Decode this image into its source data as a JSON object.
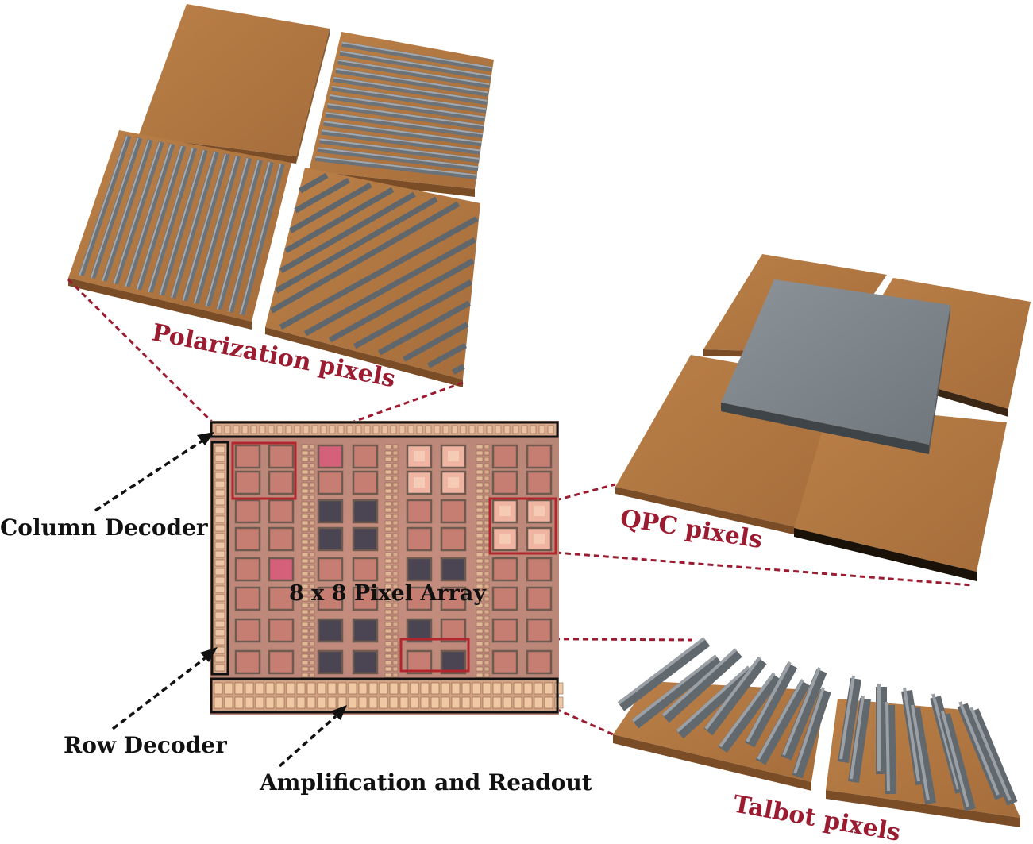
{
  "labels": {
    "polarization": "Polarization pixels",
    "qpc": "QPC pixels",
    "talbot": "Talbot pixels",
    "array": "8 x  8 Pixel Array",
    "column_decoder": "Column Decoder",
    "row_decoder": "Row Decoder",
    "amplification": "Amplification and Readout"
  },
  "colors": {
    "copper_top": "#b77c46",
    "copper_side": "#8b5a2e",
    "metal": "#7f868c",
    "callout_red": "#9b1b30",
    "highlight_red": "#b3262e",
    "chip": "#c9907f"
  }
}
